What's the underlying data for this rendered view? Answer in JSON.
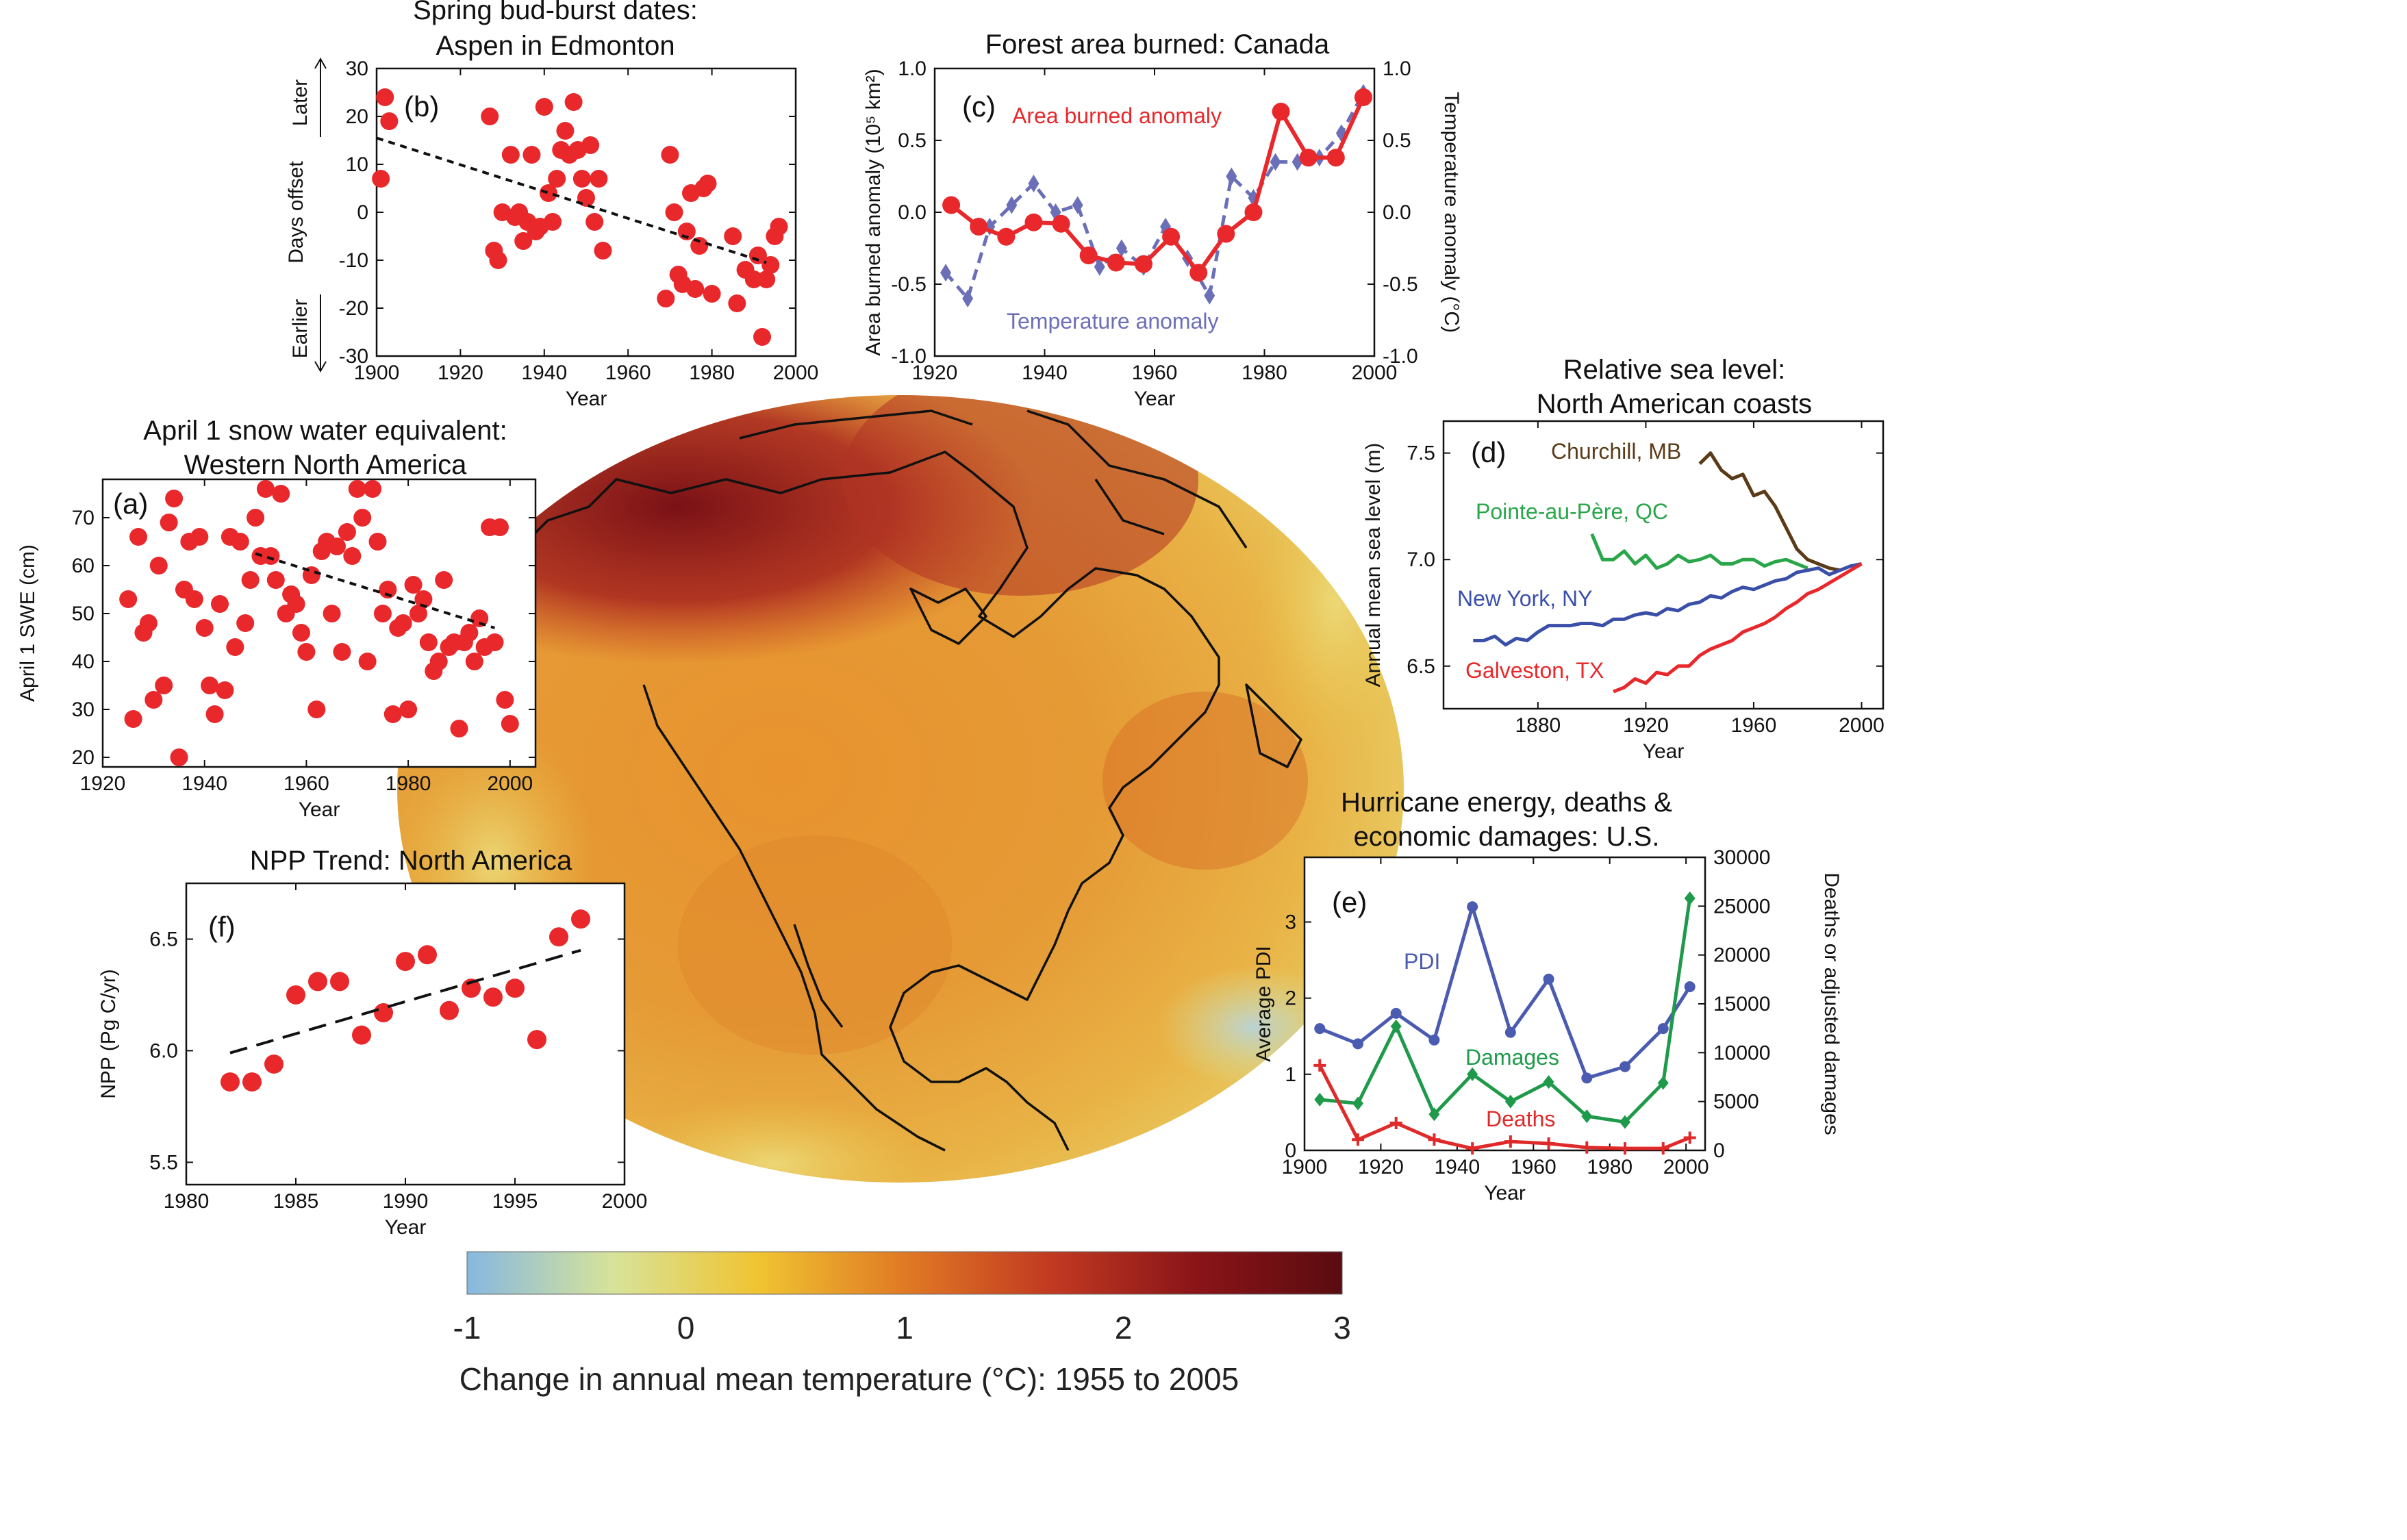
{
  "colors": {
    "red": "#e8282b",
    "blue_dashed": "#6b6fb8",
    "brown": "#5b3a17",
    "green": "#2aa64a",
    "navy": "#3a4fa8",
    "pdi": "#4a5bb0",
    "damages": "#1e9a4a",
    "deaths": "#e02a2a"
  },
  "colorbar": {
    "ticks": [
      "-1",
      "0",
      "1",
      "2",
      "3"
    ],
    "label": "Change in annual mean temperature (°C): 1955 to 2005",
    "stops": [
      "#86b8e0",
      "#d7e39a",
      "#f0c431",
      "#e07a24",
      "#c23a22",
      "#8a1418",
      "#5a0c10"
    ]
  },
  "chart_data": [
    {
      "id": "b",
      "type": "scatter",
      "panel_label": "(b)",
      "title": "Spring bud-burst dates:",
      "subtitle": "Aspen in Edmonton",
      "xlabel": "Year",
      "ylabel": "Days offset",
      "ylabel_later": "Later",
      "ylabel_earlier": "Earlier",
      "xlim": [
        1900,
        2000
      ],
      "ylim": [
        -30,
        30
      ],
      "xticks": [
        "1900",
        "1920",
        "1940",
        "1960",
        "1980",
        "2000"
      ],
      "yticks": [
        "30",
        "20",
        "10",
        "0",
        "-10",
        "-20",
        "-30"
      ],
      "trend": [
        [
          1900,
          15.5
        ],
        [
          1993,
          -10.5
        ]
      ],
      "points": [
        [
          1901,
          7
        ],
        [
          1902,
          24
        ],
        [
          1903,
          19
        ],
        [
          1927,
          20
        ],
        [
          1928,
          -8
        ],
        [
          1929,
          -10
        ],
        [
          1930,
          0
        ],
        [
          1932,
          12
        ],
        [
          1933,
          -1
        ],
        [
          1934,
          0
        ],
        [
          1935,
          -6
        ],
        [
          1936,
          -2
        ],
        [
          1937,
          12
        ],
        [
          1938,
          -4
        ],
        [
          1939,
          -3
        ],
        [
          1940,
          22
        ],
        [
          1941,
          4
        ],
        [
          1942,
          -2
        ],
        [
          1943,
          7
        ],
        [
          1944,
          13
        ],
        [
          1945,
          17
        ],
        [
          1946,
          12
        ],
        [
          1947,
          23
        ],
        [
          1948,
          13
        ],
        [
          1949,
          7
        ],
        [
          1950,
          3
        ],
        [
          1951,
          14
        ],
        [
          1952,
          -2
        ],
        [
          1953,
          7
        ],
        [
          1954,
          -8
        ],
        [
          1969,
          -18
        ],
        [
          1970,
          12
        ],
        [
          1971,
          0
        ],
        [
          1972,
          -13
        ],
        [
          1973,
          -15
        ],
        [
          1974,
          -4
        ],
        [
          1975,
          4
        ],
        [
          1976,
          -16
        ],
        [
          1977,
          -7
        ],
        [
          1978,
          5
        ],
        [
          1979,
          6
        ],
        [
          1980,
          -17
        ],
        [
          1985,
          -5
        ],
        [
          1986,
          -19
        ],
        [
          1988,
          -12
        ],
        [
          1990,
          -14
        ],
        [
          1991,
          -9
        ],
        [
          1992,
          -26
        ],
        [
          1993,
          -14
        ],
        [
          1994,
          -11
        ],
        [
          1995,
          -5
        ],
        [
          1996,
          -3
        ]
      ]
    },
    {
      "id": "c",
      "type": "line",
      "panel_label": "(c)",
      "title": "Forest area burned: Canada",
      "xlabel": "Year",
      "ylabel": "Area burned anomaly  (10⁵ km²)",
      "y2label": "Temperature anomaly (°C)",
      "xlim": [
        1920,
        2000
      ],
      "ylim": [
        -1.0,
        1.0
      ],
      "y2lim": [
        -1.0,
        1.0
      ],
      "xticks": [
        "1920",
        "1940",
        "1960",
        "1980",
        "2000"
      ],
      "yticks": [
        "1.0",
        "0.5",
        "0.0",
        "-0.5",
        "-1.0"
      ],
      "y2ticks": [
        "1.0",
        "0.5",
        "0.0",
        "-0.5",
        "-1.0"
      ],
      "series": [
        {
          "name": "Area burned anomaly",
          "style": "solid-circle",
          "x": [
            1923,
            1928,
            1933,
            1938,
            1943,
            1948,
            1953,
            1958,
            1963,
            1968,
            1973,
            1978,
            1983,
            1988,
            1993,
            1998
          ],
          "y": [
            0.05,
            -0.1,
            -0.17,
            -0.07,
            -0.08,
            -0.3,
            -0.35,
            -0.36,
            -0.17,
            -0.42,
            -0.15,
            0.0,
            0.7,
            0.38,
            0.38,
            0.8
          ]
        },
        {
          "name": "Temperature anomaly",
          "style": "dashed-diamond",
          "x": [
            1922,
            1926,
            1930,
            1934,
            1938,
            1942,
            1946,
            1950,
            1954,
            1958,
            1962,
            1966,
            1970,
            1974,
            1978,
            1982,
            1986,
            1990,
            1994,
            1998
          ],
          "y": [
            -0.42,
            -0.6,
            -0.1,
            0.05,
            0.2,
            0.0,
            0.05,
            -0.38,
            -0.25,
            -0.38,
            -0.1,
            -0.32,
            -0.58,
            0.25,
            0.1,
            0.35,
            0.35,
            0.38,
            0.55,
            0.83
          ]
        }
      ]
    },
    {
      "id": "a",
      "type": "scatter",
      "panel_label": "(a)",
      "title": "April 1 snow water equivalent:",
      "subtitle": "Western North America",
      "xlabel": "Year",
      "ylabel": "April 1 SWE (cm)",
      "xlim": [
        1920,
        2005
      ],
      "ylim": [
        18,
        78
      ],
      "xticks": [
        "1920",
        "1940",
        "1960",
        "1980",
        "2000"
      ],
      "yticks": [
        "70",
        "60",
        "50",
        "40",
        "30",
        "20"
      ],
      "trend": [
        [
          1950,
          62.5
        ],
        [
          1997,
          47
        ]
      ],
      "points": [
        [
          1925,
          53
        ],
        [
          1926,
          28
        ],
        [
          1927,
          66
        ],
        [
          1928,
          46
        ],
        [
          1929,
          48
        ],
        [
          1930,
          32
        ],
        [
          1931,
          60
        ],
        [
          1932,
          35
        ],
        [
          1933,
          69
        ],
        [
          1934,
          74
        ],
        [
          1935,
          20
        ],
        [
          1936,
          55
        ],
        [
          1937,
          65
        ],
        [
          1938,
          53
        ],
        [
          1939,
          66
        ],
        [
          1940,
          47
        ],
        [
          1941,
          35
        ],
        [
          1942,
          29
        ],
        [
          1943,
          52
        ],
        [
          1944,
          34
        ],
        [
          1945,
          66
        ],
        [
          1946,
          43
        ],
        [
          1947,
          65
        ],
        [
          1948,
          48
        ],
        [
          1949,
          57
        ],
        [
          1950,
          70
        ],
        [
          1951,
          62
        ],
        [
          1952,
          76
        ],
        [
          1953,
          62
        ],
        [
          1954,
          57
        ],
        [
          1955,
          75
        ],
        [
          1956,
          50
        ],
        [
          1957,
          54
        ],
        [
          1958,
          52
        ],
        [
          1959,
          46
        ],
        [
          1960,
          42
        ],
        [
          1961,
          58
        ],
        [
          1962,
          30
        ],
        [
          1963,
          63
        ],
        [
          1964,
          65
        ],
        [
          1965,
          50
        ],
        [
          1966,
          64
        ],
        [
          1967,
          42
        ],
        [
          1968,
          67
        ],
        [
          1969,
          62
        ],
        [
          1970,
          76
        ],
        [
          1971,
          70
        ],
        [
          1972,
          40
        ],
        [
          1973,
          76
        ],
        [
          1974,
          65
        ],
        [
          1975,
          50
        ],
        [
          1976,
          55
        ],
        [
          1977,
          29
        ],
        [
          1978,
          47
        ],
        [
          1979,
          48
        ],
        [
          1980,
          30
        ],
        [
          1981,
          56
        ],
        [
          1982,
          50
        ],
        [
          1983,
          53
        ],
        [
          1984,
          44
        ],
        [
          1985,
          38
        ],
        [
          1986,
          40
        ],
        [
          1987,
          57
        ],
        [
          1988,
          43
        ],
        [
          1989,
          44
        ],
        [
          1990,
          26
        ],
        [
          1991,
          44
        ],
        [
          1992,
          46
        ],
        [
          1993,
          40
        ],
        [
          1994,
          49
        ],
        [
          1995,
          43
        ],
        [
          1996,
          68
        ],
        [
          1997,
          44
        ],
        [
          1998,
          68
        ],
        [
          1999,
          32
        ],
        [
          2000,
          27
        ]
      ]
    },
    {
      "id": "d",
      "type": "line",
      "panel_label": "(d)",
      "title": "Relative sea level:",
      "subtitle": "North American coasts",
      "xlabel": "Year",
      "ylabel": "Annual mean sea level (m)",
      "xlim": [
        1845,
        2008
      ],
      "ylim": [
        6.3,
        7.65
      ],
      "xticks": [
        "1880",
        "1920",
        "1960",
        "2000"
      ],
      "yticks": [
        "7.5",
        "7.0",
        "6.5"
      ],
      "series": [
        {
          "name": "Churchill, MB",
          "x": [
            1940,
            1944,
            1948,
            1952,
            1956,
            1960,
            1964,
            1968,
            1972,
            1976,
            1980,
            1984,
            1988,
            1992
          ],
          "y": [
            7.45,
            7.5,
            7.42,
            7.38,
            7.4,
            7.3,
            7.32,
            7.25,
            7.15,
            7.05,
            7.0,
            6.98,
            6.96,
            6.95
          ]
        },
        {
          "name": "Pointe-au-Père, QC",
          "x": [
            1900,
            1904,
            1908,
            1912,
            1916,
            1920,
            1924,
            1928,
            1932,
            1936,
            1940,
            1944,
            1948,
            1952,
            1956,
            1960,
            1964,
            1968,
            1972,
            1976,
            1980
          ],
          "y": [
            7.12,
            7.0,
            7.0,
            7.04,
            6.98,
            7.02,
            6.96,
            6.98,
            7.02,
            6.99,
            7.0,
            7.02,
            6.98,
            6.98,
            7.0,
            7.0,
            6.97,
            6.99,
            7.0,
            6.98,
            6.96
          ]
        },
        {
          "name": "New York, NY",
          "x": [
            1856,
            1860,
            1864,
            1868,
            1872,
            1876,
            1880,
            1884,
            1888,
            1892,
            1896,
            1900,
            1904,
            1908,
            1912,
            1916,
            1920,
            1924,
            1928,
            1932,
            1936,
            1940,
            1944,
            1948,
            1952,
            1956,
            1960,
            1964,
            1968,
            1972,
            1976,
            1980,
            1984,
            1988,
            1992,
            1996,
            2000
          ],
          "y": [
            6.62,
            6.62,
            6.64,
            6.6,
            6.63,
            6.62,
            6.66,
            6.69,
            6.69,
            6.69,
            6.7,
            6.7,
            6.69,
            6.72,
            6.72,
            6.74,
            6.75,
            6.74,
            6.77,
            6.76,
            6.79,
            6.8,
            6.83,
            6.82,
            6.85,
            6.87,
            6.86,
            6.88,
            6.9,
            6.91,
            6.94,
            6.95,
            6.96,
            6.93,
            6.95,
            6.97,
            6.98
          ]
        },
        {
          "name": "Galveston, TX",
          "x": [
            1908,
            1912,
            1916,
            1920,
            1924,
            1928,
            1932,
            1936,
            1940,
            1944,
            1948,
            1952,
            1956,
            1960,
            1964,
            1968,
            1972,
            1976,
            1980,
            1984,
            1988,
            1992,
            1996,
            2000
          ],
          "y": [
            6.38,
            6.4,
            6.44,
            6.42,
            6.47,
            6.46,
            6.5,
            6.5,
            6.55,
            6.58,
            6.6,
            6.62,
            6.66,
            6.68,
            6.7,
            6.73,
            6.77,
            6.8,
            6.84,
            6.86,
            6.89,
            6.92,
            6.95,
            6.98
          ]
        }
      ]
    },
    {
      "id": "e",
      "type": "line",
      "panel_label": "(e)",
      "title": "Hurricane energy, deaths &",
      "subtitle": "economic damages: U.S.",
      "xlabel": "Year",
      "ylabel": "Average PDI",
      "y2label": "Deaths or adjusted damages",
      "xlim": [
        1900,
        2005
      ],
      "ylim": [
        0,
        3.85
      ],
      "y2lim": [
        0,
        30000
      ],
      "xticks": [
        "1900",
        "1920",
        "1940",
        "1960",
        "1980",
        "2000"
      ],
      "yticks": [
        "3",
        "2",
        "1",
        "0"
      ],
      "y2ticks": [
        "30000",
        "25000",
        "20000",
        "15000",
        "10000",
        "5000",
        "0"
      ],
      "series": [
        {
          "name": "PDI",
          "axis": "left",
          "marker": "circle",
          "x": [
            1904,
            1914,
            1924,
            1934,
            1944,
            1954,
            1964,
            1974,
            1984,
            1994,
            2001
          ],
          "y": [
            1.6,
            1.4,
            1.8,
            1.45,
            3.2,
            1.55,
            2.25,
            0.95,
            1.1,
            1.6,
            2.15
          ]
        },
        {
          "name": "Damages",
          "axis": "right",
          "marker": "diamond",
          "x": [
            1904,
            1914,
            1924,
            1934,
            1944,
            1954,
            1964,
            1974,
            1984,
            1994,
            2001
          ],
          "y": [
            5200,
            4800,
            12700,
            3700,
            7800,
            5000,
            7000,
            3500,
            2900,
            6900,
            25800
          ]
        },
        {
          "name": "Deaths",
          "axis": "right",
          "marker": "plus",
          "x": [
            1904,
            1914,
            1924,
            1934,
            1944,
            1954,
            1964,
            1974,
            1984,
            1994,
            2001
          ],
          "y": [
            8700,
            1100,
            2800,
            1100,
            200,
            900,
            700,
            300,
            200,
            200,
            1300
          ]
        }
      ]
    },
    {
      "id": "f",
      "type": "scatter",
      "panel_label": "(f)",
      "title": "NPP Trend: North America",
      "xlabel": "Year",
      "ylabel": "NPP  (Pg C/yr)",
      "xlim": [
        1980,
        2000
      ],
      "ylim": [
        5.4,
        6.75
      ],
      "xticks": [
        "1980",
        "1985",
        "1990",
        "1995",
        "2000"
      ],
      "yticks": [
        "6.5",
        "6.0",
        "5.5"
      ],
      "trend": [
        [
          1982,
          5.99
        ],
        [
          1998,
          6.45
        ]
      ],
      "points": [
        [
          1982,
          5.86
        ],
        [
          1983,
          5.86
        ],
        [
          1984,
          5.94
        ],
        [
          1985,
          6.25
        ],
        [
          1986,
          6.31
        ],
        [
          1987,
          6.31
        ],
        [
          1988,
          6.07
        ],
        [
          1989,
          6.17
        ],
        [
          1990,
          6.4
        ],
        [
          1991,
          6.43
        ],
        [
          1992,
          6.18
        ],
        [
          1993,
          6.28
        ],
        [
          1994,
          6.24
        ],
        [
          1995,
          6.28
        ],
        [
          1996,
          6.05
        ],
        [
          1997,
          6.51
        ],
        [
          1998,
          6.59
        ]
      ]
    }
  ]
}
